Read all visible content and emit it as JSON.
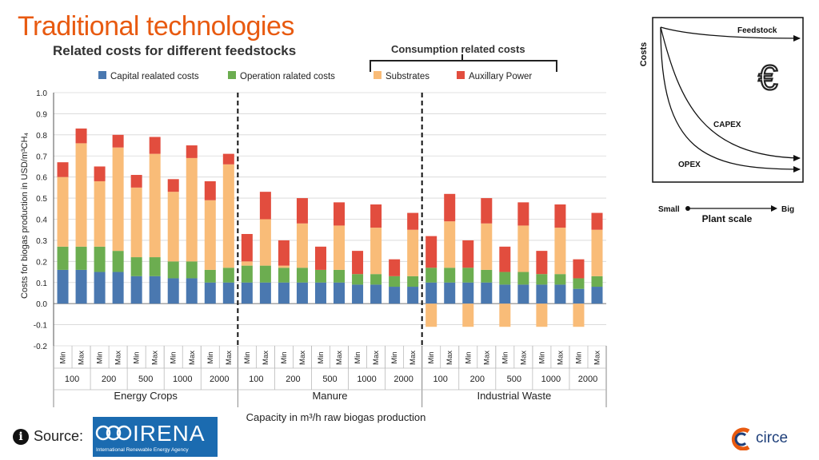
{
  "slide": {
    "title": "Traditional technologies",
    "subtitle": "Related costs for different feedstocks",
    "consumption_label": "Consumption related costs",
    "source_label": "Source:",
    "irena_name": "IRENA",
    "irena_tagline": "International Renewable Energy Agency",
    "circe_name": "circe"
  },
  "colors": {
    "capital": "#4a78b0",
    "operation": "#6cad50",
    "substrates": "#f9bc78",
    "auxiliary": "#e24d3e",
    "title": "#e85a10"
  },
  "chart_data": [
    {
      "type": "bar",
      "stacked": true,
      "ylabel": "Costs for biogas production in USD/m³CH₄",
      "xlabel": "Capacity in m³/h raw biogas production",
      "ylim": [
        -0.2,
        1.0
      ],
      "yticks": [
        "-0.2",
        "-0.1",
        "0.0",
        "0.1",
        "0.2",
        "0.3",
        "0.4",
        "0.5",
        "0.6",
        "0.7",
        "0.8",
        "0.9",
        "1.0"
      ],
      "grid": true,
      "legend_position": "top",
      "legend": [
        "Capital realated costs",
        "Operation ralated costs",
        "Substrates",
        "Auxillary Power"
      ],
      "minmax_labels": [
        "Min",
        "Max"
      ],
      "capacities": [
        "100",
        "200",
        "500",
        "1000",
        "2000"
      ],
      "groups": [
        {
          "name": "Energy Crops",
          "bars": [
            {
              "capital": 0.16,
              "operation": 0.11,
              "substrates": 0.33,
              "auxiliary": 0.07
            },
            {
              "capital": 0.16,
              "operation": 0.11,
              "substrates": 0.49,
              "auxiliary": 0.07
            },
            {
              "capital": 0.15,
              "operation": 0.12,
              "substrates": 0.31,
              "auxiliary": 0.07
            },
            {
              "capital": 0.15,
              "operation": 0.1,
              "substrates": 0.49,
              "auxiliary": 0.06
            },
            {
              "capital": 0.13,
              "operation": 0.09,
              "substrates": 0.33,
              "auxiliary": 0.06
            },
            {
              "capital": 0.13,
              "operation": 0.09,
              "substrates": 0.49,
              "auxiliary": 0.08
            },
            {
              "capital": 0.12,
              "operation": 0.08,
              "substrates": 0.33,
              "auxiliary": 0.06
            },
            {
              "capital": 0.12,
              "operation": 0.08,
              "substrates": 0.49,
              "auxiliary": 0.06
            },
            {
              "capital": 0.1,
              "operation": 0.06,
              "substrates": 0.33,
              "auxiliary": 0.09
            },
            {
              "capital": 0.1,
              "operation": 0.07,
              "substrates": 0.49,
              "auxiliary": 0.05
            }
          ]
        },
        {
          "name": "Manure",
          "bars": [
            {
              "capital": 0.1,
              "operation": 0.08,
              "substrates": 0.02,
              "auxiliary": 0.13
            },
            {
              "capital": 0.1,
              "operation": 0.08,
              "substrates": 0.22,
              "auxiliary": 0.13
            },
            {
              "capital": 0.1,
              "operation": 0.07,
              "substrates": 0.01,
              "auxiliary": 0.12
            },
            {
              "capital": 0.1,
              "operation": 0.07,
              "substrates": 0.21,
              "auxiliary": 0.12
            },
            {
              "capital": 0.1,
              "operation": 0.06,
              "substrates": 0.0,
              "auxiliary": 0.11
            },
            {
              "capital": 0.1,
              "operation": 0.06,
              "substrates": 0.21,
              "auxiliary": 0.11
            },
            {
              "capital": 0.09,
              "operation": 0.05,
              "substrates": 0.0,
              "auxiliary": 0.11
            },
            {
              "capital": 0.09,
              "operation": 0.05,
              "substrates": 0.22,
              "auxiliary": 0.11
            },
            {
              "capital": 0.08,
              "operation": 0.05,
              "substrates": 0.0,
              "auxiliary": 0.08
            },
            {
              "capital": 0.08,
              "operation": 0.05,
              "substrates": 0.22,
              "auxiliary": 0.08
            }
          ]
        },
        {
          "name": "Industrial Waste",
          "bars": [
            {
              "capital": 0.1,
              "operation": 0.07,
              "substrates": -0.11,
              "auxiliary": 0.15
            },
            {
              "capital": 0.1,
              "operation": 0.07,
              "substrates": 0.22,
              "auxiliary": 0.13
            },
            {
              "capital": 0.1,
              "operation": 0.07,
              "substrates": -0.11,
              "auxiliary": 0.13
            },
            {
              "capital": 0.1,
              "operation": 0.06,
              "substrates": 0.22,
              "auxiliary": 0.12
            },
            {
              "capital": 0.09,
              "operation": 0.06,
              "substrates": -0.11,
              "auxiliary": 0.12
            },
            {
              "capital": 0.09,
              "operation": 0.06,
              "substrates": 0.22,
              "auxiliary": 0.11
            },
            {
              "capital": 0.09,
              "operation": 0.05,
              "substrates": -0.11,
              "auxiliary": 0.11
            },
            {
              "capital": 0.09,
              "operation": 0.05,
              "substrates": 0.22,
              "auxiliary": 0.11
            },
            {
              "capital": 0.07,
              "operation": 0.05,
              "substrates": -0.11,
              "auxiliary": 0.09
            },
            {
              "capital": 0.08,
              "operation": 0.05,
              "substrates": 0.22,
              "auxiliary": 0.08
            }
          ]
        }
      ]
    },
    {
      "type": "line",
      "ylabel": "Costs",
      "xlabel": "Plant scale",
      "x_min_label": "Small",
      "x_max_label": "Big",
      "series": [
        {
          "name": "Feedstock",
          "trend": "flat"
        },
        {
          "name": "CAPEX",
          "trend": "decreasing"
        },
        {
          "name": "OPEX",
          "trend": "decreasing"
        }
      ],
      "icon": "euro-icon"
    }
  ]
}
